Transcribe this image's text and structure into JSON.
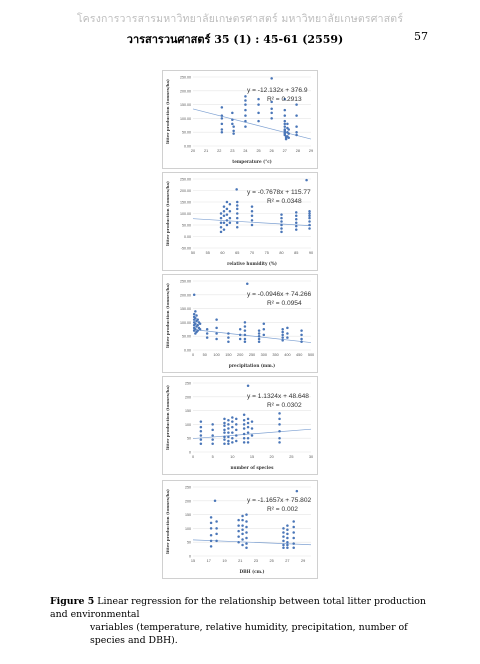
{
  "header": {
    "watermark": "โครงการวารสารมหาวิทยาลัยเกษตรศาสตร์ มหาวิทยาลัยเกษตรศาสตร์",
    "journal": "วารสารวนศาสตร์ 35 (1) : 45-61 (2559)",
    "page_number": "57"
  },
  "figure": {
    "label": "Figure 5",
    "caption_line1": " Linear regression for the relationship between total litter production and environmental",
    "caption_line2": "variables (temperature, relative humidity, precipitation, number of species and DBH)."
  },
  "colors": {
    "points": "#4a76b8",
    "trend": "#7ea1d2",
    "grid": "#e6e6e6",
    "axis_text": "#555555"
  },
  "chart_data": [
    {
      "type": "scatter",
      "xlabel": "temperature (°c)",
      "ylabel": "litter production (tonnes/ha)",
      "equation": "y = -12.132x + 376.9",
      "r2": "R² = 0.2913",
      "xlim": [
        20,
        29
      ],
      "ylim": [
        0,
        250
      ],
      "xticks": [
        20,
        21,
        22,
        23,
        24,
        25,
        26,
        27,
        28,
        29
      ],
      "yticks": [
        0,
        50,
        100,
        150,
        200,
        250
      ],
      "ytick_labels": [
        "0.00",
        "50.00",
        "100.00",
        "150.00",
        "200.00",
        "250.00"
      ],
      "trend": {
        "slope": -12.132,
        "intercept": 376.9
      },
      "x": [
        22.2,
        22.2,
        22.2,
        22.2,
        22.2,
        22.2,
        23.0,
        23.0,
        23.0,
        23.1,
        23.1,
        23.1,
        24.0,
        24.0,
        24.0,
        24.0,
        24.0,
        24.0,
        24.0,
        25.0,
        25.0,
        25.0,
        25.0,
        26.0,
        26.0,
        26.0,
        26.0,
        26.0,
        27.0,
        27.0,
        27.0,
        27.0,
        27.0,
        27.0,
        27.0,
        27.0,
        27.0,
        27.0,
        27.0,
        27.1,
        27.1,
        27.1,
        27.2,
        27.2,
        27.2,
        27.2,
        27.3,
        27.3,
        27.3,
        27.9,
        27.9,
        27.9,
        27.9,
        27.9
      ],
      "y": [
        140,
        110,
        100,
        80,
        60,
        50,
        120,
        95,
        80,
        70,
        55,
        45,
        180,
        165,
        150,
        130,
        110,
        90,
        70,
        170,
        150,
        120,
        90,
        160,
        135,
        120,
        100,
        245,
        170,
        130,
        110,
        90,
        80,
        70,
        60,
        55,
        50,
        45,
        40,
        35,
        30,
        25,
        80,
        65,
        50,
        35,
        60,
        45,
        30,
        150,
        110,
        70,
        50,
        40
      ]
    },
    {
      "type": "scatter",
      "xlabel": "relative humidity (%)",
      "ylabel": "litter production (tonnes/ha)",
      "equation": "y = -0.7678x + 115.77",
      "r2": "R² = 0.0348",
      "xlim": [
        50,
        90
      ],
      "ylim": [
        -50,
        250
      ],
      "xticks": [
        50,
        55,
        60,
        65,
        70,
        75,
        80,
        85,
        90
      ],
      "yticks": [
        -50,
        0,
        50,
        100,
        150,
        200,
        250
      ],
      "ytick_labels": [
        "-50.00",
        "0.00",
        "50.00",
        "100.00",
        "150.00",
        "200.00",
        "250.00"
      ],
      "trend": {
        "slope": -0.7678,
        "intercept": 115.77
      },
      "x": [
        59.5,
        59.5,
        59.5,
        59.5,
        59.5,
        60.5,
        60.5,
        60.5,
        60.5,
        60.5,
        61.5,
        61.5,
        61.5,
        61.5,
        61.5,
        62.5,
        62.5,
        62.5,
        62.5,
        65,
        65,
        65,
        65,
        65,
        65,
        65,
        64.8,
        70,
        70,
        70,
        70,
        70,
        80,
        80,
        80,
        80,
        80,
        80,
        85,
        85,
        85,
        85,
        85,
        85,
        89.5,
        89.5,
        89.5,
        89.5,
        89.5,
        89.5,
        89.5,
        88.5
      ],
      "y": [
        100,
        80,
        60,
        40,
        20,
        130,
        110,
        90,
        60,
        30,
        150,
        120,
        95,
        70,
        50,
        140,
        110,
        80,
        60,
        150,
        135,
        120,
        100,
        80,
        60,
        40,
        205,
        130,
        110,
        90,
        70,
        50,
        95,
        80,
        65,
        50,
        35,
        20,
        105,
        90,
        75,
        60,
        45,
        30,
        110,
        100,
        90,
        80,
        65,
        50,
        35,
        245
      ]
    },
    {
      "type": "scatter",
      "xlabel": "precipitation (mm.)",
      "ylabel": "litter production (tonnes/ha)",
      "equation": "y = -0.0946x + 74.266",
      "r2": "R² = 0.0954",
      "xlim": [
        0,
        500
      ],
      "ylim": [
        0,
        250
      ],
      "xticks": [
        0,
        50,
        100,
        150,
        200,
        250,
        300,
        350,
        400,
        450,
        500
      ],
      "yticks": [
        0,
        50,
        100,
        150,
        200,
        250
      ],
      "ytick_labels": [
        "0.00",
        "50.00",
        "100.00",
        "150.00",
        "200.00",
        "250.00"
      ],
      "trend": {
        "slope": -0.0946,
        "intercept": 74.266
      },
      "x": [
        5,
        5,
        5,
        5,
        5,
        5,
        5,
        10,
        10,
        10,
        10,
        10,
        15,
        15,
        15,
        15,
        20,
        20,
        20,
        25,
        25,
        30,
        30,
        5,
        60,
        60,
        60,
        100,
        100,
        100,
        100,
        150,
        150,
        150,
        200,
        200,
        200,
        220,
        220,
        220,
        220,
        220,
        220,
        230,
        280,
        280,
        280,
        280,
        280,
        300,
        300,
        300,
        380,
        380,
        380,
        380,
        380,
        400,
        400,
        400,
        460,
        460,
        460,
        460
      ],
      "y": [
        130,
        120,
        110,
        100,
        90,
        80,
        70,
        140,
        115,
        95,
        75,
        60,
        125,
        105,
        85,
        65,
        110,
        90,
        70,
        100,
        80,
        95,
        75,
        200,
        75,
        60,
        45,
        110,
        80,
        60,
        40,
        60,
        45,
        30,
        75,
        55,
        40,
        100,
        85,
        70,
        55,
        40,
        30,
        240,
        70,
        60,
        50,
        40,
        30,
        95,
        75,
        55,
        75,
        65,
        55,
        45,
        35,
        80,
        60,
        45,
        70,
        55,
        40,
        30
      ]
    },
    {
      "type": "scatter",
      "xlabel": "number of species",
      "ylabel": "litter production (tonnes/ha)",
      "equation": "y = 1.1324x + 48.648",
      "r2": "R² = 0.0302",
      "xlim": [
        0,
        30
      ],
      "ylim": [
        0,
        250
      ],
      "xticks": [
        0,
        5,
        10,
        15,
        20,
        25,
        30
      ],
      "yticks": [
        0,
        50,
        100,
        150,
        200,
        250
      ],
      "ytick_labels": [
        "0",
        "50",
        "100",
        "150",
        "200",
        "250"
      ],
      "trend": {
        "slope": 1.1324,
        "intercept": 48.648
      },
      "x": [
        2,
        2,
        2,
        2,
        2,
        2,
        5,
        5,
        5,
        5,
        5,
        8,
        8,
        8,
        8,
        8,
        8,
        8,
        8,
        9,
        9,
        9,
        9,
        9,
        9,
        9,
        10,
        10,
        10,
        10,
        10,
        10,
        11,
        11,
        11,
        11,
        11,
        13,
        13,
        13,
        13,
        13,
        13,
        13,
        14,
        14,
        14,
        14,
        14,
        14,
        15,
        15,
        15,
        14,
        22,
        22,
        22,
        22,
        22,
        22
      ],
      "y": [
        110,
        90,
        75,
        60,
        45,
        30,
        100,
        80,
        60,
        45,
        30,
        120,
        105,
        95,
        80,
        70,
        55,
        45,
        30,
        115,
        100,
        85,
        70,
        55,
        40,
        30,
        125,
        110,
        90,
        70,
        50,
        35,
        120,
        100,
        80,
        60,
        40,
        135,
        115,
        100,
        85,
        65,
        50,
        35,
        120,
        105,
        90,
        70,
        50,
        35,
        110,
        85,
        60,
        240,
        140,
        120,
        100,
        75,
        50,
        35
      ]
    },
    {
      "type": "scatter",
      "xlabel": "DBH (cm.)",
      "ylabel": "litter production (tonnes/ha)",
      "equation": "y = -1.1657x + 75.802",
      "r2": "R² = 0.002",
      "xlim": [
        15,
        30
      ],
      "ylim": [
        0,
        250
      ],
      "xticks": [
        15,
        17,
        19,
        21,
        23,
        25,
        27,
        29,
        31
      ],
      "yticks": [
        0,
        50,
        100,
        150,
        200,
        250
      ],
      "ytick_labels": [
        "0",
        "50",
        "100",
        "150",
        "200",
        "250"
      ],
      "trend": {
        "slope": -1.1657,
        "intercept": 75.802
      },
      "x": [
        17.3,
        17.3,
        17.3,
        17.3,
        17.3,
        17.3,
        17.8,
        18,
        18,
        18,
        18,
        20.8,
        20.8,
        20.8,
        20.8,
        20.8,
        21.3,
        21.3,
        21.3,
        21.3,
        21.3,
        21.3,
        21.3,
        21.8,
        21.8,
        21.8,
        21.8,
        21.8,
        21.8,
        21.8,
        26.5,
        26.5,
        26.5,
        26.5,
        26.5,
        26.5,
        27,
        27,
        27,
        27,
        27,
        27,
        27,
        27.8,
        27.8,
        27.8,
        27.8,
        27.8,
        27.8,
        28.2
      ],
      "y": [
        140,
        120,
        100,
        75,
        55,
        35,
        200,
        125,
        100,
        80,
        55,
        130,
        110,
        90,
        70,
        50,
        145,
        130,
        110,
        95,
        80,
        60,
        40,
        150,
        125,
        105,
        85,
        65,
        45,
        30,
        100,
        85,
        70,
        55,
        40,
        30,
        110,
        95,
        80,
        65,
        50,
        40,
        30,
        125,
        105,
        85,
        65,
        45,
        30,
        235
      ]
    }
  ]
}
